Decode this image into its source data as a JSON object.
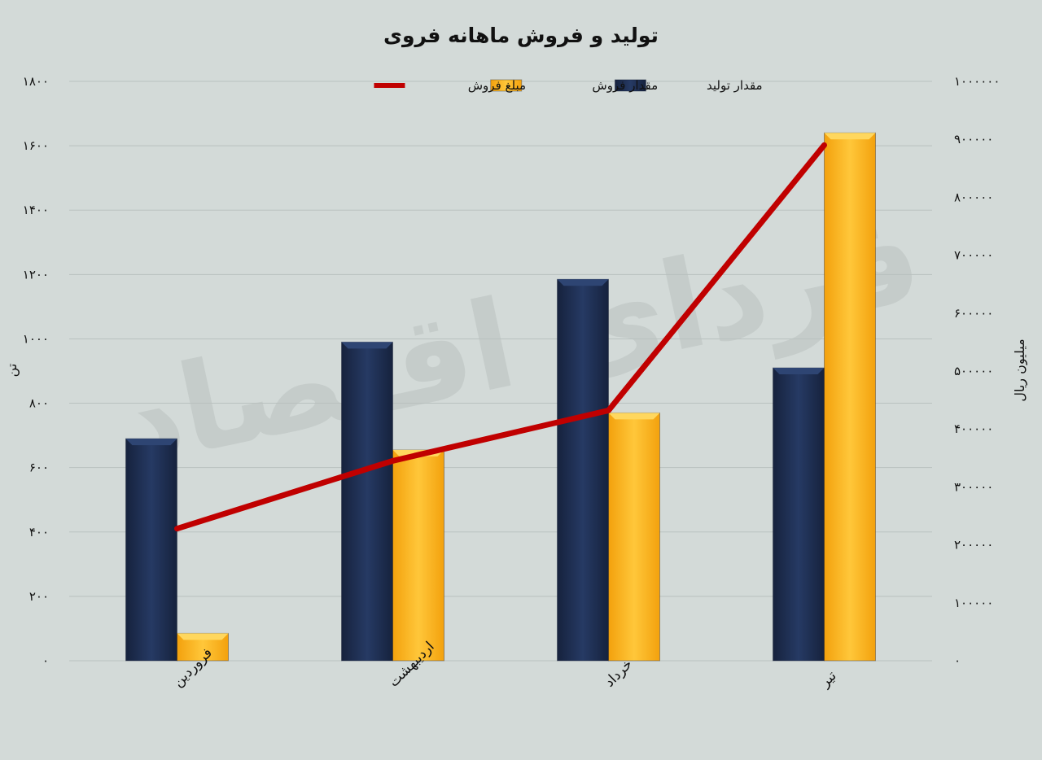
{
  "chart_data": {
    "type": "bar",
    "title": "تولید و فروش ماهانه فروی",
    "categories": [
      "فروردین",
      "اردیبهشت",
      "خرداد",
      "تیر"
    ],
    "series": [
      {
        "name": "مقدار تولید",
        "type": "bar",
        "axis": "left",
        "color": "#1f2d4e",
        "values": [
          690,
          990,
          1185,
          910
        ]
      },
      {
        "name": "مقدار فروش",
        "type": "bar",
        "axis": "left",
        "color": "#fdb515",
        "values": [
          85,
          655,
          770,
          1640
        ]
      },
      {
        "name": "مبلغ فروش",
        "type": "line",
        "axis": "right",
        "color": "#c00000",
        "values": [
          228000,
          345000,
          432000,
          890000
        ]
      }
    ],
    "ylabel_left": "تن",
    "ylabel_right": "میلیون ریال",
    "ylim_left": [
      0,
      1800
    ],
    "ylim_right": [
      0,
      1000000
    ],
    "yticks_left": [
      "۰",
      "۲۰۰",
      "۴۰۰",
      "۶۰۰",
      "۸۰۰",
      "۱۰۰۰",
      "۱۲۰۰",
      "۱۴۰۰",
      "۱۶۰۰",
      "۱۸۰۰"
    ],
    "yticks_right": [
      "۰",
      "۱۰۰۰۰۰",
      "۲۰۰۰۰۰",
      "۳۰۰۰۰۰",
      "۴۰۰۰۰۰",
      "۵۰۰۰۰۰",
      "۶۰۰۰۰۰",
      "۷۰۰۰۰۰",
      "۸۰۰۰۰۰",
      "۹۰۰۰۰۰",
      "۱۰۰۰۰۰۰"
    ],
    "legend_position": "top-center",
    "grid": true
  },
  "watermark": "فردای اقتصاد"
}
